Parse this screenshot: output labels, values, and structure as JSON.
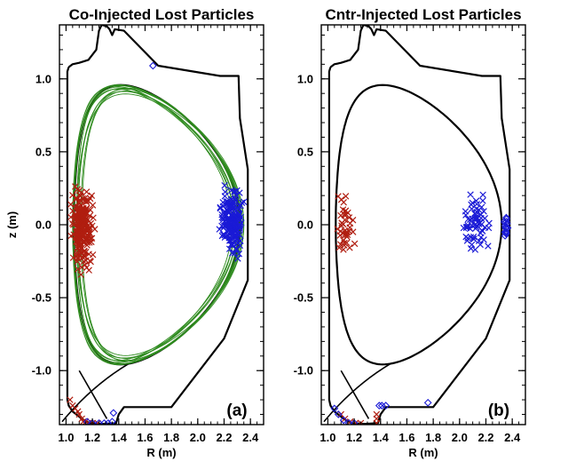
{
  "colors": {
    "wall": "#000000",
    "separatrix": "#000000",
    "orbit": "#2e8b1e",
    "lost_inner": "#b01e10",
    "lost_outer": "#1a1ad6"
  },
  "chart_data": [
    {
      "type": "scatter",
      "title": "Co-Injected Lost Particles",
      "xlabel": "R (m)",
      "ylabel": "z (m)",
      "xlim": [
        0.95,
        2.5
      ],
      "ylim": [
        -1.37,
        1.37
      ],
      "xticks": [
        "1.0",
        "1.2",
        "1.4",
        "1.6",
        "1.8",
        "2.0",
        "2.2",
        "2.4"
      ],
      "yticks": [
        "-1.0",
        "-0.5",
        "0.0",
        "0.5",
        "1.0"
      ],
      "panel_label": "(a)",
      "grid": false,
      "series": [
        {
          "marker": "x",
          "color": "lost_inner",
          "region": "inner wall",
          "R_range": [
            1.01,
            1.23
          ],
          "z_range": [
            -0.36,
            0.33
          ],
          "count": 240
        },
        {
          "marker": "x",
          "color": "lost_outer",
          "region": "outer limiter",
          "R_range": [
            2.15,
            2.37
          ],
          "z_range": [
            -0.28,
            0.31
          ],
          "count": 190
        },
        {
          "marker": "x",
          "color": "lost_inner",
          "region": "lower divertor",
          "points": [
            [
              1.03,
              -1.2
            ],
            [
              1.05,
              -1.24
            ],
            [
              1.07,
              -1.26
            ],
            [
              1.09,
              -1.28
            ],
            [
              1.1,
              -1.3
            ],
            [
              1.12,
              -1.33
            ],
            [
              1.13,
              -1.35
            ],
            [
              1.15,
              -1.35
            ],
            [
              1.17,
              -1.36
            ],
            [
              1.2,
              -1.36
            ],
            [
              1.24,
              -1.36
            ]
          ]
        },
        {
          "marker": "diamond",
          "color": "lost_outer",
          "region": "lower divertor",
          "points": [
            [
              1.16,
              -1.35
            ],
            [
              1.2,
              -1.36
            ],
            [
              1.25,
              -1.36
            ],
            [
              1.29,
              -1.36
            ],
            [
              1.32,
              -1.36
            ],
            [
              1.35,
              -1.35
            ],
            [
              1.36,
              -1.29
            ]
          ]
        },
        {
          "marker": "diamond",
          "color": "lost_outer",
          "region": "upper wall",
          "points": [
            [
              1.66,
              1.09
            ]
          ]
        }
      ]
    },
    {
      "type": "scatter",
      "title": "Cntr-Injected Lost Particles",
      "xlabel": "R (m)",
      "ylabel": "",
      "xlim": [
        0.95,
        2.5
      ],
      "ylim": [
        -1.37,
        1.37
      ],
      "xticks": [
        "1.0",
        "1.2",
        "1.4",
        "1.6",
        "1.8",
        "2.0",
        "2.2",
        "2.4"
      ],
      "yticks": [
        "-1.0",
        "-0.5",
        "0.0",
        "0.5",
        "1.0"
      ],
      "panel_label": "(b)",
      "grid": false,
      "series": [
        {
          "marker": "x",
          "color": "lost_inner",
          "region": "inner wall",
          "R_range": [
            1.02,
            1.22
          ],
          "z_range": [
            -0.3,
            0.27
          ],
          "count": 42
        },
        {
          "marker": "x",
          "color": "lost_outer",
          "region": "outer midplane",
          "R_range": [
            1.98,
            2.28
          ],
          "z_range": [
            -0.28,
            0.3
          ],
          "count": 65
        },
        {
          "marker": "diamond",
          "color": "lost_outer",
          "region": "outer wall",
          "R_range": [
            2.33,
            2.38
          ],
          "z_range": [
            -0.14,
            0.08
          ],
          "count": 18
        },
        {
          "marker": "x",
          "color": "lost_inner",
          "region": "lower divertor",
          "points": [
            [
              1.1,
              -1.3
            ],
            [
              1.13,
              -1.33
            ],
            [
              1.17,
              -1.35
            ],
            [
              1.21,
              -1.36
            ],
            [
              1.25,
              -1.36
            ],
            [
              1.37,
              -1.3
            ],
            [
              1.37,
              -1.33
            ],
            [
              1.37,
              -1.36
            ]
          ]
        },
        {
          "marker": "diamond",
          "color": "lost_outer",
          "region": "lower divertor",
          "points": [
            [
              1.05,
              -1.26
            ],
            [
              1.08,
              -1.3
            ],
            [
              1.12,
              -1.34
            ],
            [
              1.16,
              -1.36
            ],
            [
              1.2,
              -1.36
            ],
            [
              1.39,
              -1.24
            ],
            [
              1.41,
              -1.24
            ],
            [
              1.44,
              -1.24
            ],
            [
              1.76,
              -1.22
            ]
          ]
        }
      ]
    }
  ]
}
